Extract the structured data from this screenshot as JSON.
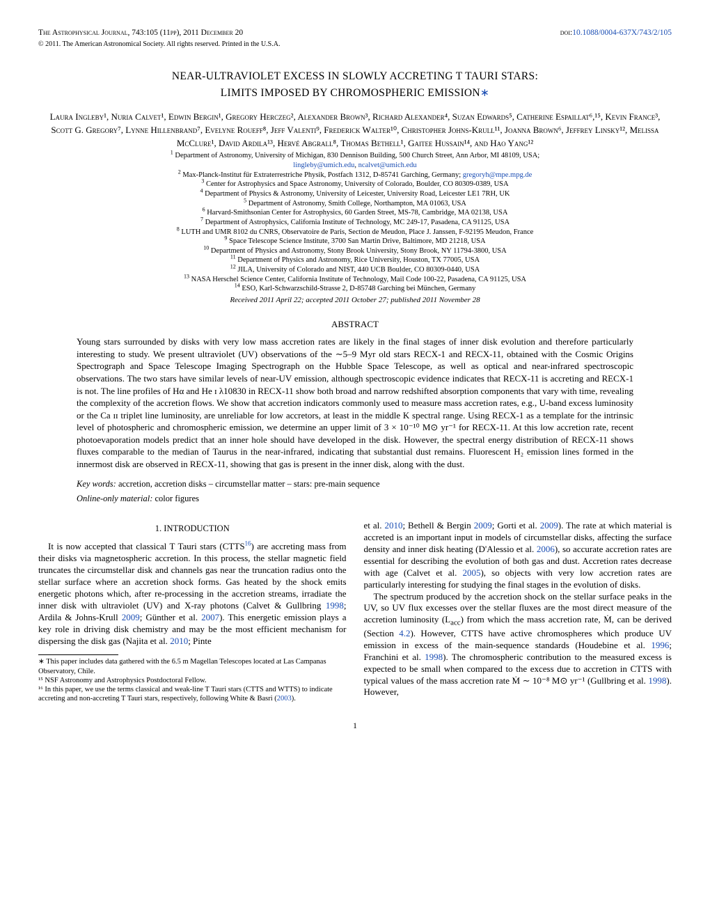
{
  "header": {
    "journal": "The Astrophysical Journal",
    "citation": ", 743:105 (11pp), 2011 December 20",
    "doi_label": "doi:",
    "doi": "10.1088/0004-637X/743/2/105",
    "copyright": "© 2011. The American Astronomical Society. All rights reserved. Printed in the U.S.A."
  },
  "title": {
    "line1": "NEAR-ULTRAVIOLET EXCESS IN SLOWLY ACCRETING T TAURI STARS:",
    "line2": "LIMITS IMPOSED BY CHROMOSPHERIC EMISSION",
    "asterisk": "∗"
  },
  "authors": "Laura Ingleby¹, Nuria Calvet¹, Edwin Bergin¹, Gregory Herczeg², Alexander Brown³, Richard Alexander⁴, Suzan Edwards⁵, Catherine Espaillat⁶,¹⁵, Kevin France³, Scott G. Gregory⁷, Lynne Hillenbrand⁷, Evelyne Roueff⁸, Jeff Valenti⁹, Frederick Walter¹⁰, Christopher Johns-Krull¹¹, Joanna Brown⁶, Jeffrey Linsky¹², Melissa McClure¹, David Ardila¹³, Hervé Abgrall⁸, Thomas Bethell¹, Gaitee Hussain¹⁴, and Hao Yang¹²",
  "affiliations": [
    {
      "n": "1",
      "text": " Department of Astronomy, University of Michigan, 830 Dennison Building, 500 Church Street, Ann Arbor, MI 48109, USA;"
    },
    {
      "n": "",
      "text": ""
    },
    {
      "n": "2",
      "text": " Max-Planck-Institut für Extraterrestriche Physik, Postfach 1312, D-85741 Garching, Germany; "
    },
    {
      "n": "3",
      "text": " Center for Astrophysics and Space Astronomy, University of Colorado, Boulder, CO 80309-0389, USA"
    },
    {
      "n": "4",
      "text": " Department of Physics & Astronomy, University of Leicester, University Road, Leicester LE1 7RH, UK"
    },
    {
      "n": "5",
      "text": " Department of Astronomy, Smith College, Northampton, MA 01063, USA"
    },
    {
      "n": "6",
      "text": " Harvard-Smithsonian Center for Astrophysics, 60 Garden Street, MS-78, Cambridge, MA 02138, USA"
    },
    {
      "n": "7",
      "text": " Department of Astrophysics, California Institute of Technology, MC 249-17, Pasadena, CA 91125, USA"
    },
    {
      "n": "8",
      "text": " LUTH and UMR 8102 du CNRS, Observatoire de Paris, Section de Meudon, Place J. Janssen, F-92195 Meudon, France"
    },
    {
      "n": "9",
      "text": " Space Telescope Science Institute, 3700 San Martin Drive, Baltimore, MD 21218, USA"
    },
    {
      "n": "10",
      "text": " Department of Physics and Astronomy, Stony Brook University, Stony Brook, NY 11794-3800, USA"
    },
    {
      "n": "11",
      "text": " Department of Physics and Astronomy, Rice University, Houston, TX 77005, USA"
    },
    {
      "n": "12",
      "text": " JILA, University of Colorado and NIST, 440 UCB Boulder, CO 80309-0440, USA"
    },
    {
      "n": "13",
      "text": " NASA Herschel Science Center, California Institute of Technology, Mail Code 100-22, Pasadena, CA 91125, USA"
    },
    {
      "n": "14",
      "text": " ESO, Karl-Schwarzschild-Strasse 2, D-85748 Garching bei München, Germany"
    }
  ],
  "emails": {
    "e1": "lingleby@umich.edu",
    "e2": "ncalvet@umich.edu",
    "e3": "gregoryh@mpe.mpg.de"
  },
  "dates": "Received 2011 April 22; accepted 2011 October 27; published 2011 November 28",
  "abstract_head": "ABSTRACT",
  "abstract": "Young stars surrounded by disks with very low mass accretion rates are likely in the final stages of inner disk evolution and therefore particularly interesting to study. We present ultraviolet (UV) observations of the ∼5–9 Myr old stars RECX-1 and RECX-11, obtained with the Cosmic Origins Spectrograph and Space Telescope Imaging Spectrograph on the Hubble Space Telescope, as well as optical and near-infrared spectroscopic observations. The two stars have similar levels of near-UV emission, although spectroscopic evidence indicates that RECX-11 is accreting and RECX-1 is not. The line profiles of Hα and He ɪ λ10830 in RECX-11 show both broad and narrow redshifted absorption components that vary with time, revealing the complexity of the accretion flows. We show that accretion indicators commonly used to measure mass accretion rates, e.g., U-band excess luminosity or the Ca ɪɪ triplet line luminosity, are unreliable for low accretors, at least in the middle K spectral range. Using RECX-1 as a template for the intrinsic level of photospheric and chromospheric emission, we determine an upper limit of 3 × 10⁻¹⁰ M⊙ yr⁻¹ for RECX-11. At this low accretion rate, recent photoevaporation models predict that an inner hole should have developed in the disk. However, the spectral energy distribution of RECX-11 shows fluxes comparable to the median of Taurus in the near-infrared, indicating that substantial dust remains. Fluorescent H₂ emission lines formed in the innermost disk are observed in RECX-11, showing that gas is present in the inner disk, along with the dust.",
  "keywords": {
    "label": "Key words:",
    "text": "  accretion, accretion disks – circumstellar matter – stars: pre-main sequence"
  },
  "online": {
    "label": "Online-only material:",
    "text": " color figures"
  },
  "section1_head": "1. INTRODUCTION",
  "col1_p1a": "It is now accepted that classical T Tauri stars (CTTS",
  "col1_p1_fn": "16",
  "col1_p1b": ") are accreting mass from their disks via magnetospheric accretion. In this process, the stellar magnetic field truncates the circumstellar disk and channels gas near the truncation radius onto the stellar surface where an accretion shock forms. Gas heated by the shock emits energetic photons which, after re-processing in the accretion streams, irradiate the inner disk with ultraviolet (UV) and X-ray photons (Calvet & Gullbring ",
  "col1_y1": "1998",
  "col1_p1c": "; Ardila & Johns-Krull ",
  "col1_y2": "2009",
  "col1_p1d": "; Günther et al. ",
  "col1_y3": "2007",
  "col1_p1e": "). This energetic emission plays a key role in driving disk chemistry and may be the most efficient mechanism for dispersing the disk gas (Najita et al. ",
  "col1_y4": "2010",
  "col1_p1f": "; Pinte",
  "col2_p1a": "et al. ",
  "col2_y1": "2010",
  "col2_p1b": "; Bethell & Bergin ",
  "col2_y2": "2009",
  "col2_p1c": "; Gorti et al. ",
  "col2_y3": "2009",
  "col2_p1d": "). The rate at which material is accreted is an important input in models of circumstellar disks, affecting the surface density and inner disk heating (D'Alessio et al. ",
  "col2_y4": "2006",
  "col2_p1e": "), so accurate accretion rates are essential for describing the evolution of both gas and dust. Accretion rates decrease with age (Calvet et al. ",
  "col2_y5": "2005",
  "col2_p1f": "), so objects with very low accretion rates are particularly interesting for studying the final stages in the evolution of disks.",
  "col2_p2a": "The spectrum produced by the accretion shock on the stellar surface peaks in the UV, so UV flux excesses over the stellar fluxes are the most direct measure of the accretion luminosity (L",
  "col2_p2_sub": "acc",
  "col2_p2b": ") from which the mass accretion rate, Ṁ, can be derived (Section ",
  "col2_sec": "4.2",
  "col2_p2c": "). However, CTTS have active chromospheres which produce UV emission in excess of the main-sequence standards (Houdebine et al. ",
  "col2_y6": "1996",
  "col2_p2d": "; Franchini et al. ",
  "col2_y7": "1998",
  "col2_p2e": "). The chromospheric contribution to the measured excess is expected to be small when compared to the excess due to accretion in CTTS with typical values of the mass accretion rate Ṁ ∼ 10⁻⁸ M⊙ yr⁻¹ (Gullbring et al. ",
  "col2_y8": "1998",
  "col2_p2f": "). However,",
  "footnotes": {
    "f1": "∗ This paper includes data gathered with the 6.5 m Magellan Telescopes located at Las Campanas Observatory, Chile.",
    "f2": "¹⁵ NSF Astronomy and Astrophysics Postdoctoral Fellow.",
    "f3a": "¹⁶ In this paper, we use the terms classical and weak-line T Tauri stars (CTTS and WTTS) to indicate accreting and non-accreting T Tauri stars, respectively, following White & Basri (",
    "f3_year": "2003",
    "f3b": ")."
  },
  "pagenum": "1"
}
